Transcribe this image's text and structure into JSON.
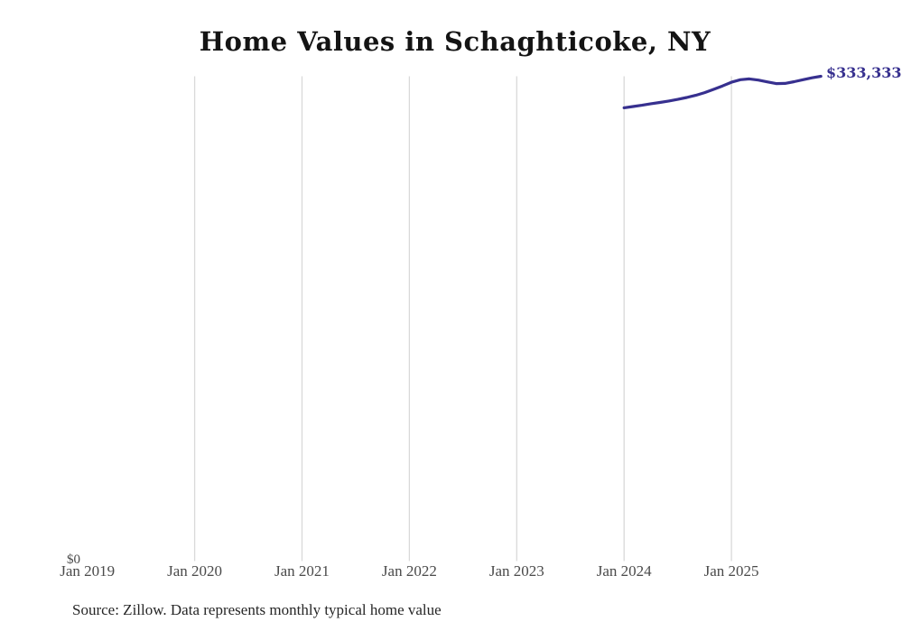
{
  "title": "Home Values in Schaghticoke, NY",
  "source_note": "Source: Zillow. Data represents monthly typical home value",
  "y_axis": {
    "zero_label": "$0"
  },
  "end_label": "$333,333",
  "colors": {
    "background": "#ffffff",
    "title_text": "#141414",
    "tick_text": "#4a4a4a",
    "source_text": "#262626",
    "grid": "#d9d9d9",
    "line": "#37308f"
  },
  "chart_data": {
    "type": "line",
    "title": "Home Values in Schaghticoke, NY",
    "xlabel": "",
    "ylabel": "",
    "x_ticks": [
      "Jan 2019",
      "Jan 2020",
      "Jan 2021",
      "Jan 2022",
      "Jan 2023",
      "Jan 2024",
      "Jan 2025"
    ],
    "gridline_ticks": [
      "Jan 2020",
      "Jan 2021",
      "Jan 2022",
      "Jan 2023",
      "Jan 2024",
      "Jan 2025"
    ],
    "ylim": [
      0,
      333333
    ],
    "grid": "vertical-only",
    "legend_position": "none",
    "series": [
      {
        "name": "Monthly typical home value",
        "color": "#37308f",
        "end_label": "$333,333",
        "points": [
          {
            "month": "Jan 2024",
            "value": 311600
          },
          {
            "month": "Feb 2024",
            "value": 312500
          },
          {
            "month": "Mar 2024",
            "value": 313400
          },
          {
            "month": "Apr 2024",
            "value": 314400
          },
          {
            "month": "May 2024",
            "value": 315300
          },
          {
            "month": "Jun 2024",
            "value": 316300
          },
          {
            "month": "Jul 2024",
            "value": 317400
          },
          {
            "month": "Aug 2024",
            "value": 318700
          },
          {
            "month": "Sep 2024",
            "value": 320200
          },
          {
            "month": "Oct 2024",
            "value": 322100
          },
          {
            "month": "Nov 2024",
            "value": 324300
          },
          {
            "month": "Dec 2024",
            "value": 326700
          },
          {
            "month": "Jan 2025",
            "value": 329200
          },
          {
            "month": "Feb 2025",
            "value": 331000
          },
          {
            "month": "Mar 2025",
            "value": 331500
          },
          {
            "month": "Apr 2025",
            "value": 330700
          },
          {
            "month": "May 2025",
            "value": 329500
          },
          {
            "month": "Jun 2025",
            "value": 328300
          },
          {
            "month": "Jul 2025",
            "value": 328400
          },
          {
            "month": "Aug 2025",
            "value": 329600
          },
          {
            "month": "Sep 2025",
            "value": 331000
          },
          {
            "month": "Oct 2025",
            "value": 332300
          },
          {
            "month": "Nov 2025",
            "value": 333333
          }
        ]
      }
    ]
  }
}
